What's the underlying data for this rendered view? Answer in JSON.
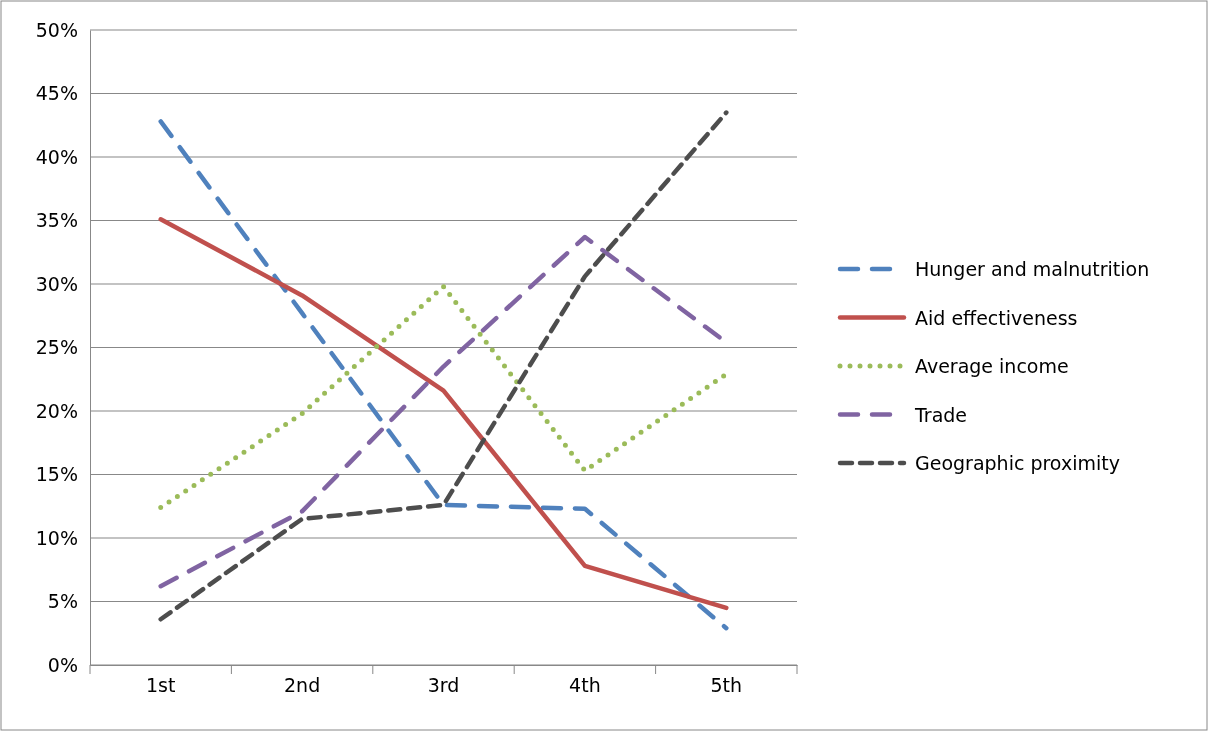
{
  "chart_data": {
    "type": "line",
    "categories": [
      "1st",
      "2nd",
      "3rd",
      "4th",
      "5th"
    ],
    "ylim": [
      0,
      50
    ],
    "yticks": [
      {
        "value": 0,
        "label": "0%"
      },
      {
        "value": 5,
        "label": "5%"
      },
      {
        "value": 10,
        "label": "10%"
      },
      {
        "value": 15,
        "label": "15%"
      },
      {
        "value": 20,
        "label": "20%"
      },
      {
        "value": 25,
        "label": "25%"
      },
      {
        "value": 30,
        "label": "30%"
      },
      {
        "value": 35,
        "label": "35%"
      },
      {
        "value": 40,
        "label": "40%"
      },
      {
        "value": 45,
        "label": "45%"
      },
      {
        "value": 50,
        "label": "50%"
      }
    ],
    "grid": "y",
    "legend": "right",
    "marker": "none",
    "series": [
      {
        "name": "Hunger and malnutrition",
        "color": "#4f81bd",
        "line_style": "dashed",
        "values": [
          42.8,
          27.7,
          12.6,
          12.3,
          2.9
        ]
      },
      {
        "name": "Aid effectiveness",
        "color": "#c0504d",
        "line_style": "solid",
        "values": [
          35.1,
          29.1,
          21.6,
          7.8,
          4.5
        ]
      },
      {
        "name": "Average income",
        "color": "#9bbb59",
        "line_style": "dotted",
        "values": [
          12.4,
          19.8,
          29.8,
          15.3,
          22.9
        ]
      },
      {
        "name": "Trade",
        "color": "#8064a2",
        "line_style": "dashed",
        "values": [
          6.2,
          12.1,
          23.5,
          33.7,
          25.4
        ]
      },
      {
        "name": "Geographic proximity",
        "color": "#4d4d4d",
        "line_style": "dashed",
        "values": [
          3.6,
          11.5,
          12.6,
          30.6,
          43.5
        ]
      }
    ]
  }
}
